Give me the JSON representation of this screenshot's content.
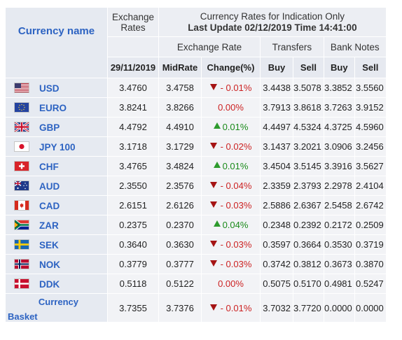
{
  "header": {
    "exchange_rates": "Exchange Rates",
    "title_line1": "Currency Rates for Indication Only",
    "title_line2": "Last Update 02/12/2019 Time 14:41:00",
    "currency_name": "Currency name",
    "exchange_rate": "Exchange Rate",
    "transfers": "Transfers",
    "bank_notes": "Bank Notes",
    "date": "29/11/2019",
    "midrate": "MidRate",
    "change": "Change(%)",
    "buy": "Buy",
    "sell": "Sell"
  },
  "rows": [
    {
      "code": "USD",
      "flag": "us-flag-icon",
      "rate": "3.4760",
      "mid": "3.4758",
      "dir": "down",
      "change": "- 0.01%",
      "t_buy": "3.4438",
      "t_sell": "3.5078",
      "b_buy": "3.3852",
      "b_sell": "3.5560"
    },
    {
      "code": "EURO",
      "flag": "eu-flag-icon",
      "rate": "3.8241",
      "mid": "3.8266",
      "dir": "flat",
      "change": "0.00%",
      "t_buy": "3.7913",
      "t_sell": "3.8618",
      "b_buy": "3.7263",
      "b_sell": "3.9152"
    },
    {
      "code": "GBP",
      "flag": "uk-flag-icon",
      "rate": "4.4792",
      "mid": "4.4910",
      "dir": "up",
      "change": "0.01%",
      "t_buy": "4.4497",
      "t_sell": "4.5324",
      "b_buy": "4.3725",
      "b_sell": "4.5960"
    },
    {
      "code": "JPY 100",
      "flag": "jp-flag-icon",
      "rate": "3.1718",
      "mid": "3.1729",
      "dir": "down",
      "change": "- 0.02%",
      "t_buy": "3.1437",
      "t_sell": "3.2021",
      "b_buy": "3.0906",
      "b_sell": "3.2456"
    },
    {
      "code": "CHF",
      "flag": "ch-flag-icon",
      "rate": "3.4765",
      "mid": "3.4824",
      "dir": "up",
      "change": "0.01%",
      "t_buy": "3.4504",
      "t_sell": "3.5145",
      "b_buy": "3.3916",
      "b_sell": "3.5627"
    },
    {
      "code": "AUD",
      "flag": "au-flag-icon",
      "rate": "2.3550",
      "mid": "2.3576",
      "dir": "down",
      "change": "- 0.04%",
      "t_buy": "2.3359",
      "t_sell": "2.3793",
      "b_buy": "2.2978",
      "b_sell": "2.4104"
    },
    {
      "code": "CAD",
      "flag": "ca-flag-icon",
      "rate": "2.6151",
      "mid": "2.6126",
      "dir": "down",
      "change": "- 0.03%",
      "t_buy": "2.5886",
      "t_sell": "2.6367",
      "b_buy": "2.5458",
      "b_sell": "2.6742"
    },
    {
      "code": "ZAR",
      "flag": "za-flag-icon",
      "rate": "0.2375",
      "mid": "0.2370",
      "dir": "up",
      "change": "0.04%",
      "t_buy": "0.2348",
      "t_sell": "0.2392",
      "b_buy": "0.2172",
      "b_sell": "0.2509"
    },
    {
      "code": "SEK",
      "flag": "se-flag-icon",
      "rate": "0.3640",
      "mid": "0.3630",
      "dir": "down",
      "change": "- 0.03%",
      "t_buy": "0.3597",
      "t_sell": "0.3664",
      "b_buy": "0.3530",
      "b_sell": "0.3719"
    },
    {
      "code": "NOK",
      "flag": "no-flag-icon",
      "rate": "0.3779",
      "mid": "0.3777",
      "dir": "down",
      "change": "- 0.03%",
      "t_buy": "0.3742",
      "t_sell": "0.3812",
      "b_buy": "0.3673",
      "b_sell": "0.3870"
    },
    {
      "code": "DDK",
      "flag": "dk-flag-icon",
      "rate": "0.5118",
      "mid": "0.5122",
      "dir": "flat",
      "change": "0.00%",
      "t_buy": "0.5075",
      "t_sell": "0.5170",
      "b_buy": "0.4981",
      "b_sell": "0.5247"
    }
  ],
  "basket": {
    "line1": "Currency",
    "line2": "Basket",
    "rate": "3.7355",
    "mid": "3.7376",
    "dir": "down",
    "change": "- 0.01%",
    "t_buy": "3.7032",
    "t_sell": "3.7720",
    "b_buy": "0.0000",
    "b_sell": "0.0000"
  },
  "colors": {
    "down": "#cc2222",
    "up": "#1a8a1a",
    "accent": "#2d63c2"
  }
}
